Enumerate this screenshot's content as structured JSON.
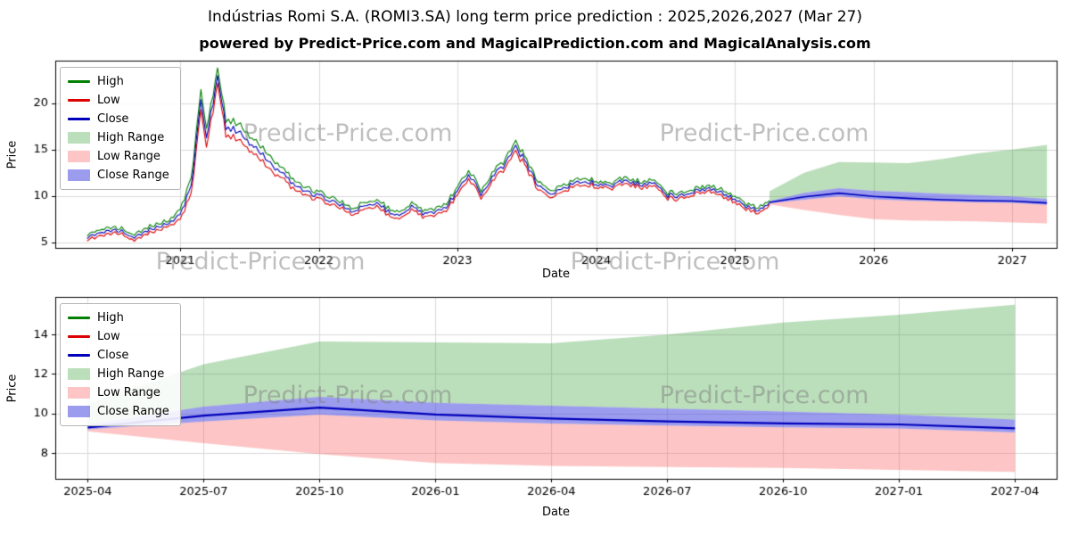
{
  "header": {
    "title": "Indústrias Romi S.A. (ROMI3.SA) long term price prediction : 2025,2026,2027 (Mar 27)",
    "subtitle": "powered by Predict-Price.com and MagicalPrediction.com and MagicalAnalysis.com"
  },
  "watermark": {
    "text": "Predict-Price.com"
  },
  "colors": {
    "high_line": "#008000",
    "low_line": "#dd0000",
    "close_line": "#0000bb",
    "high_band": "rgba(60,160,60,0.35)",
    "low_band": "rgba(250,90,90,0.35)",
    "close_band": "rgba(75,75,225,0.55)",
    "grid": "#d9d9d9",
    "axis": "#000000"
  },
  "legend": {
    "items": [
      {
        "label": "High",
        "type": "line",
        "color": "#008000"
      },
      {
        "label": "Low",
        "type": "line",
        "color": "#dd0000"
      },
      {
        "label": "Close",
        "type": "line",
        "color": "#0000bb"
      },
      {
        "label": "High Range",
        "type": "patch",
        "color": "rgba(60,160,60,0.35)"
      },
      {
        "label": "Low Range",
        "type": "patch",
        "color": "rgba(250,90,90,0.35)"
      },
      {
        "label": "Close Range",
        "type": "patch",
        "color": "rgba(75,75,225,0.55)"
      }
    ]
  },
  "chart_data": [
    {
      "name": "price-history-with-prediction",
      "type": "line",
      "title": "",
      "xlabel": "Date",
      "ylabel": "Price",
      "xlim": [
        2020.1,
        2027.32
      ],
      "ylim": [
        4.4,
        24.6
      ],
      "yticks": [
        5,
        10,
        15,
        20
      ],
      "xticks": [
        {
          "value": 2021,
          "label": "2021"
        },
        {
          "value": 2022,
          "label": "2022"
        },
        {
          "value": 2023,
          "label": "2023"
        },
        {
          "value": 2024,
          "label": "2024"
        },
        {
          "value": 2025,
          "label": "2025"
        },
        {
          "value": 2026,
          "label": "2026"
        },
        {
          "value": 2027,
          "label": "2027"
        }
      ],
      "grid": true,
      "legend_position": "upper left",
      "history": {
        "t": [
          2020.33,
          2020.42,
          2020.5,
          2020.58,
          2020.67,
          2020.75,
          2020.83,
          2020.92,
          2021.0,
          2021.08,
          2021.15,
          2021.19,
          2021.27,
          2021.33,
          2021.42,
          2021.5,
          2021.58,
          2021.67,
          2021.75,
          2021.83,
          2021.92,
          2022.0,
          2022.08,
          2022.17,
          2022.25,
          2022.33,
          2022.42,
          2022.5,
          2022.58,
          2022.67,
          2022.75,
          2022.83,
          2022.92,
          2023.0,
          2023.08,
          2023.17,
          2023.25,
          2023.33,
          2023.42,
          2023.5,
          2023.58,
          2023.67,
          2023.75,
          2023.83,
          2023.92,
          2024.0,
          2024.08,
          2024.17,
          2024.25,
          2024.33,
          2024.42,
          2024.5,
          2024.58,
          2024.67,
          2024.75,
          2024.83,
          2024.92,
          2025.0,
          2025.08,
          2025.17,
          2025.25
        ],
        "close": [
          5.6,
          6.1,
          6.3,
          6.2,
          5.6,
          6.2,
          6.6,
          7.2,
          7.9,
          11.0,
          20.5,
          16.0,
          23.0,
          17.5,
          17.0,
          15.5,
          14.8,
          13.2,
          12.5,
          11.0,
          10.3,
          10.0,
          9.6,
          9.0,
          8.3,
          9.0,
          9.3,
          8.3,
          7.9,
          8.8,
          8.1,
          8.3,
          8.9,
          10.5,
          12.3,
          10.3,
          12.0,
          13.2,
          15.2,
          13.5,
          11.0,
          10.2,
          10.8,
          11.3,
          11.5,
          11.4,
          11.1,
          11.4,
          11.5,
          11.2,
          11.4,
          10.1,
          9.9,
          10.4,
          10.5,
          10.7,
          10.2,
          9.6,
          8.9,
          8.4,
          9.3
        ],
        "high": [
          5.85,
          6.35,
          6.55,
          6.45,
          5.85,
          6.45,
          6.85,
          7.45,
          8.4,
          11.8,
          21.5,
          16.9,
          23.8,
          18.3,
          17.8,
          16.2,
          15.5,
          13.8,
          13.0,
          11.4,
          10.65,
          10.3,
          9.9,
          9.3,
          8.6,
          9.3,
          9.6,
          8.6,
          8.2,
          9.1,
          8.4,
          8.6,
          9.2,
          10.85,
          12.7,
          10.65,
          12.4,
          13.6,
          15.65,
          13.9,
          11.35,
          10.5,
          11.1,
          11.6,
          11.8,
          11.65,
          11.35,
          11.65,
          11.75,
          11.45,
          11.65,
          10.35,
          10.15,
          10.65,
          10.75,
          10.95,
          10.45,
          9.85,
          9.15,
          8.65,
          9.5
        ],
        "low": [
          5.35,
          5.85,
          6.05,
          5.95,
          5.35,
          5.95,
          6.35,
          6.95,
          7.4,
          10.2,
          19.5,
          15.1,
          22.2,
          16.7,
          16.2,
          14.8,
          14.1,
          12.6,
          12.0,
          10.6,
          9.95,
          9.7,
          9.3,
          8.7,
          8.0,
          8.7,
          9.0,
          8.0,
          7.6,
          8.5,
          7.8,
          8.0,
          8.6,
          10.15,
          11.9,
          9.95,
          11.6,
          12.8,
          14.75,
          13.1,
          10.65,
          9.9,
          10.5,
          11.0,
          11.2,
          11.15,
          10.85,
          11.15,
          11.25,
          10.95,
          11.15,
          9.85,
          9.65,
          10.15,
          10.25,
          10.45,
          9.95,
          9.35,
          8.65,
          8.15,
          9.1
        ]
      },
      "prediction": {
        "t": [
          2025.25,
          2025.5,
          2025.75,
          2026.0,
          2026.25,
          2026.5,
          2026.75,
          2027.0,
          2027.25
        ],
        "close": [
          9.3,
          9.9,
          10.3,
          9.95,
          9.75,
          9.6,
          9.5,
          9.45,
          9.25
        ],
        "close_high": [
          9.45,
          10.35,
          10.85,
          10.55,
          10.4,
          10.25,
          10.1,
          9.95,
          9.7
        ],
        "close_low": [
          9.2,
          9.6,
          9.95,
          9.65,
          9.5,
          9.4,
          9.3,
          9.25,
          9.05
        ],
        "high_top": [
          10.5,
          12.5,
          13.65,
          13.6,
          13.55,
          14.0,
          14.6,
          15.0,
          15.5
        ],
        "low_bottom": [
          9.1,
          8.5,
          7.95,
          7.5,
          7.35,
          7.3,
          7.25,
          7.15,
          7.05
        ]
      }
    },
    {
      "name": "prediction-zoom",
      "type": "area",
      "title": "",
      "xlabel": "Date",
      "ylabel": "Price",
      "xlim": [
        2025.18,
        2027.34
      ],
      "ylim": [
        6.7,
        15.9
      ],
      "yticks": [
        8,
        10,
        12,
        14
      ],
      "xticks": [
        {
          "value": 2025.25,
          "label": "2025-04"
        },
        {
          "value": 2025.5,
          "label": "2025-07"
        },
        {
          "value": 2025.75,
          "label": "2025-10"
        },
        {
          "value": 2026.0,
          "label": "2026-01"
        },
        {
          "value": 2026.25,
          "label": "2026-04"
        },
        {
          "value": 2026.5,
          "label": "2026-07"
        },
        {
          "value": 2026.75,
          "label": "2026-10"
        },
        {
          "value": 2027.0,
          "label": "2027-01"
        },
        {
          "value": 2027.25,
          "label": "2027-04"
        }
      ],
      "grid": true,
      "legend_position": "upper left",
      "prediction": {
        "t": [
          2025.25,
          2025.5,
          2025.75,
          2026.0,
          2026.25,
          2026.5,
          2026.75,
          2027.0,
          2027.25
        ],
        "close": [
          9.3,
          9.9,
          10.3,
          9.95,
          9.75,
          9.6,
          9.5,
          9.45,
          9.25
        ],
        "close_high": [
          9.45,
          10.35,
          10.85,
          10.55,
          10.4,
          10.25,
          10.1,
          9.95,
          9.7
        ],
        "close_low": [
          9.2,
          9.6,
          9.95,
          9.65,
          9.5,
          9.4,
          9.3,
          9.25,
          9.05
        ],
        "high_top": [
          10.5,
          12.5,
          13.65,
          13.6,
          13.55,
          14.0,
          14.6,
          15.0,
          15.5
        ],
        "low_bottom": [
          9.1,
          8.5,
          7.95,
          7.5,
          7.35,
          7.3,
          7.25,
          7.15,
          7.05
        ]
      }
    }
  ]
}
